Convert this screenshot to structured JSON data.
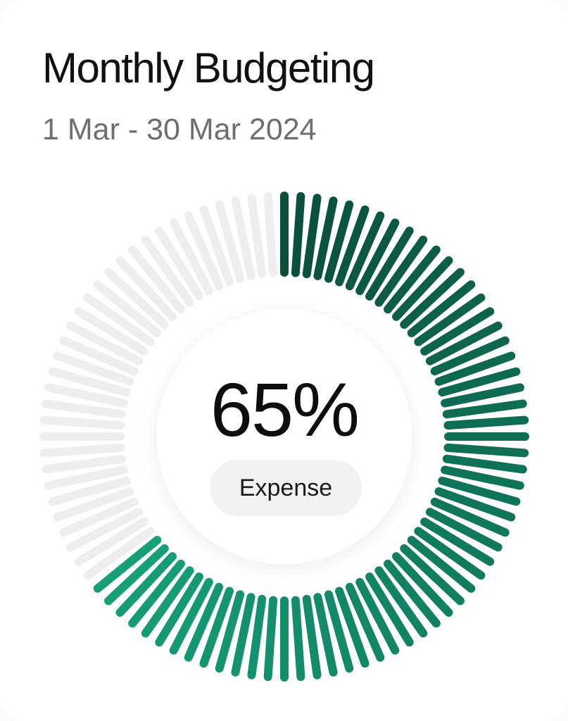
{
  "header": {
    "title": "Monthly Budgeting",
    "date_range": "1 Mar - 30 Mar 2024"
  },
  "gauge": {
    "value_label": "65%",
    "category_label": "Expense",
    "fraction": 0.65,
    "colors": {
      "active_start": "#0a4f3e",
      "active_end": "#16a07a",
      "inactive": "#eeeeee"
    }
  }
}
